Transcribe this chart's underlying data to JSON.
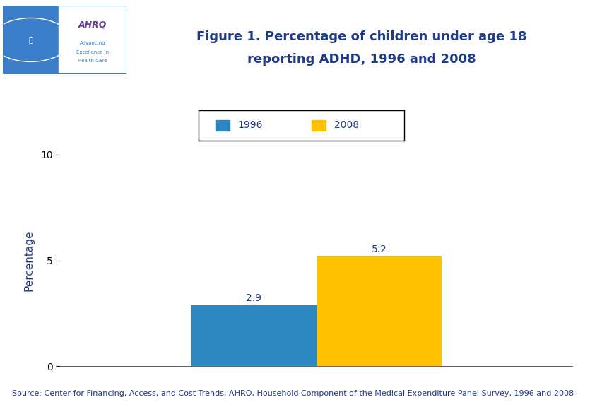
{
  "title_line1": "Figure 1. Percentage of children under age 18",
  "title_line2": "reporting ADHD, 1996 and 2008",
  "title_color": "#1F3B8C",
  "title_fontsize": 13,
  "bar_values": [
    2.9,
    5.2
  ],
  "bar_colors": [
    "#2E86C1",
    "#FFC000"
  ],
  "bar_annotations": [
    "2.9",
    "5.2"
  ],
  "ylabel": "Percentage",
  "ylabel_color": "#1F3B8C",
  "ylim": [
    0,
    10
  ],
  "yticks": [
    0,
    5,
    10
  ],
  "background_color": "#FFFFFF",
  "source_text": "Source: Center for Financing, Access, and Cost Trends, AHRQ, Household Component of the Medical Expenditure Panel Survey, 1996 and 2008",
  "source_fontsize": 8,
  "source_color": "#1F3B8C",
  "legend_labels": [
    "1996",
    "2008"
  ],
  "legend_colors": [
    "#2E86C1",
    "#FFC000"
  ],
  "annotation_fontsize": 10,
  "annotation_color": "#1F3B8C",
  "stripe_color": "#1F3B8C",
  "legend_fontsize": 10,
  "logo_left_color": "#3A7DC9",
  "logo_right_color": "#FFFFFF"
}
